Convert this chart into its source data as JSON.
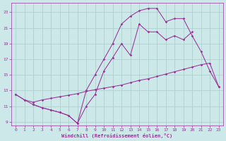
{
  "xlabel": "Windchill (Refroidissement éolien,°C)",
  "bg_color": "#cce8e8",
  "line_color": "#993399",
  "grid_color": "#aacccc",
  "xlim": [
    -0.5,
    23.5
  ],
  "ylim": [
    8.5,
    24.2
  ],
  "yticks": [
    9,
    11,
    13,
    15,
    17,
    19,
    21,
    23
  ],
  "xticks": [
    0,
    1,
    2,
    3,
    4,
    5,
    6,
    7,
    8,
    9,
    10,
    11,
    12,
    13,
    14,
    15,
    16,
    17,
    18,
    19,
    20,
    21,
    22,
    23
  ],
  "curve1_x": [
    0,
    1,
    2,
    3,
    4,
    5,
    6,
    7,
    8,
    9,
    10,
    11,
    12,
    13,
    14,
    15,
    16,
    17,
    18,
    19,
    20,
    21,
    22,
    23
  ],
  "curve1_y": [
    12.5,
    11.8,
    11.5,
    11.8,
    12.0,
    12.2,
    12.4,
    12.6,
    12.9,
    13.1,
    13.3,
    13.5,
    13.7,
    14.0,
    14.3,
    14.5,
    14.8,
    15.1,
    15.4,
    15.7,
    16.0,
    16.3,
    16.5,
    13.5
  ],
  "curve2_x": [
    0,
    1,
    2,
    3,
    4,
    5,
    6,
    7,
    8,
    9,
    10,
    11,
    12,
    13,
    14,
    15,
    16,
    17,
    18,
    19,
    20,
    21,
    22,
    23
  ],
  "curve2_y": [
    12.5,
    11.8,
    11.2,
    10.8,
    10.5,
    10.2,
    9.8,
    8.8,
    13.0,
    15.0,
    17.0,
    19.0,
    21.5,
    22.5,
    23.2,
    23.5,
    23.5,
    21.8,
    22.2,
    22.2,
    20.0,
    18.0,
    15.5,
    13.5
  ],
  "curve3_x": [
    2,
    3,
    4,
    5,
    6,
    7,
    8,
    9,
    10,
    11,
    12,
    13,
    14,
    15,
    16,
    17,
    18,
    19,
    20
  ],
  "curve3_y": [
    11.2,
    10.8,
    10.5,
    10.2,
    9.8,
    8.8,
    11.0,
    12.5,
    15.5,
    17.2,
    19.0,
    17.5,
    21.5,
    20.5,
    20.5,
    19.5,
    20.0,
    19.5,
    20.5
  ]
}
